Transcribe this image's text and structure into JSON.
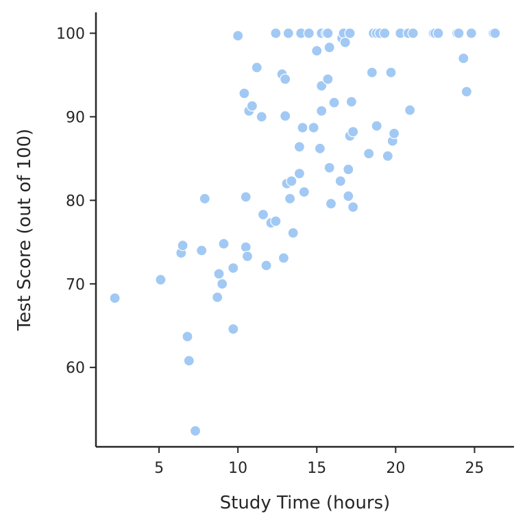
{
  "chart_data": {
    "type": "scatter",
    "title": "",
    "xlabel": "Study Time (hours)",
    "ylabel": "Test Score (out of 100)",
    "xlim": [
      1,
      27.5
    ],
    "ylim": [
      50.5,
      102.5
    ],
    "xticks": [
      5,
      10,
      15,
      20,
      25
    ],
    "yticks": [
      60,
      70,
      80,
      90,
      100
    ],
    "grid": false,
    "point_color": "#a1c9f4",
    "points": [
      [
        2.2,
        68.3
      ],
      [
        5.1,
        70.5
      ],
      [
        6.4,
        73.7
      ],
      [
        6.5,
        74.6
      ],
      [
        6.8,
        63.7
      ],
      [
        6.9,
        60.8
      ],
      [
        7.3,
        52.4
      ],
      [
        7.7,
        74.0
      ],
      [
        7.9,
        80.2
      ],
      [
        8.7,
        68.4
      ],
      [
        8.8,
        71.2
      ],
      [
        9.0,
        70.0
      ],
      [
        9.1,
        74.8
      ],
      [
        9.7,
        71.9
      ],
      [
        9.7,
        64.6
      ],
      [
        10.0,
        99.7
      ],
      [
        10.4,
        92.8
      ],
      [
        10.5,
        80.4
      ],
      [
        10.5,
        74.4
      ],
      [
        10.6,
        73.3
      ],
      [
        10.7,
        90.7
      ],
      [
        10.9,
        91.3
      ],
      [
        11.2,
        95.9
      ],
      [
        11.5,
        90.0
      ],
      [
        11.6,
        78.3
      ],
      [
        11.8,
        72.2
      ],
      [
        12.1,
        77.3
      ],
      [
        12.4,
        100.0
      ],
      [
        12.4,
        77.5
      ],
      [
        12.8,
        95.1
      ],
      [
        12.9,
        73.1
      ],
      [
        13.0,
        94.5
      ],
      [
        13.0,
        90.1
      ],
      [
        13.1,
        82.0
      ],
      [
        13.2,
        100.0
      ],
      [
        13.3,
        80.2
      ],
      [
        13.4,
        82.3
      ],
      [
        13.5,
        76.1
      ],
      [
        13.9,
        83.2
      ],
      [
        13.9,
        86.4
      ],
      [
        14.0,
        100.0
      ],
      [
        14.1,
        88.7
      ],
      [
        14.2,
        81.0
      ],
      [
        14.5,
        100.0
      ],
      [
        14.8,
        88.7
      ],
      [
        15.0,
        97.9
      ],
      [
        15.2,
        86.2
      ],
      [
        15.3,
        100.0
      ],
      [
        15.3,
        93.7
      ],
      [
        15.3,
        90.7
      ],
      [
        15.6,
        100.0
      ],
      [
        15.7,
        94.5
      ],
      [
        15.7,
        100.0
      ],
      [
        15.8,
        83.9
      ],
      [
        15.8,
        98.3
      ],
      [
        15.9,
        79.6
      ],
      [
        16.1,
        91.7
      ],
      [
        16.5,
        82.3
      ],
      [
        16.6,
        99.4
      ],
      [
        16.7,
        100.0
      ],
      [
        16.8,
        98.9
      ],
      [
        17.0,
        80.5
      ],
      [
        17.0,
        83.7
      ],
      [
        17.1,
        100.0
      ],
      [
        17.1,
        87.7
      ],
      [
        17.2,
        91.8
      ],
      [
        17.3,
        88.2
      ],
      [
        17.3,
        79.2
      ],
      [
        18.3,
        85.6
      ],
      [
        18.5,
        95.3
      ],
      [
        18.6,
        100.0
      ],
      [
        18.8,
        100.0
      ],
      [
        18.8,
        88.9
      ],
      [
        19.0,
        100.0
      ],
      [
        19.3,
        100.0
      ],
      [
        19.5,
        85.3
      ],
      [
        19.7,
        95.3
      ],
      [
        19.8,
        87.1
      ],
      [
        19.9,
        88.0
      ],
      [
        20.3,
        100.0
      ],
      [
        20.8,
        100.0
      ],
      [
        20.9,
        90.8
      ],
      [
        21.1,
        100.0
      ],
      [
        22.4,
        100.0
      ],
      [
        22.5,
        100.0
      ],
      [
        22.7,
        100.0
      ],
      [
        23.9,
        100.0
      ],
      [
        24.0,
        100.0
      ],
      [
        24.3,
        97.0
      ],
      [
        24.5,
        93.0
      ],
      [
        24.8,
        100.0
      ],
      [
        26.2,
        100.0
      ],
      [
        26.3,
        100.0
      ]
    ]
  }
}
